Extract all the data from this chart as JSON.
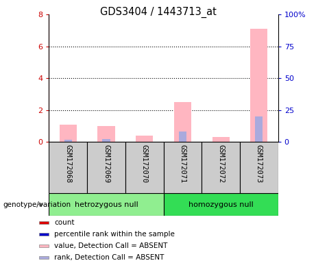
{
  "title": "GDS3404 / 1443713_at",
  "samples": [
    "GSM172068",
    "GSM172069",
    "GSM172070",
    "GSM172071",
    "GSM172072",
    "GSM172073"
  ],
  "groups": [
    "hetrozygous null",
    "homozygous null"
  ],
  "ylim_left": [
    0,
    8
  ],
  "ylim_right": [
    0,
    100
  ],
  "yticks_left": [
    0,
    2,
    4,
    6,
    8
  ],
  "yticks_right": [
    0,
    25,
    50,
    75,
    100
  ],
  "yticklabels_right": [
    "0",
    "25",
    "50",
    "75",
    "100%"
  ],
  "pink_bars": [
    1.1,
    1.0,
    0.4,
    2.5,
    0.3,
    7.1
  ],
  "blue_bars": [
    0.15,
    0.2,
    0.0,
    0.65,
    0.0,
    1.6
  ],
  "pink_color": "#FFB6C1",
  "blue_color": "#AAAADD",
  "red_color": "#DD0000",
  "dark_blue_color": "#0000CC",
  "group1_color": "#90EE90",
  "group2_color": "#33DD55",
  "sample_box_color": "#CCCCCC",
  "genotype_label": "genotype/variation",
  "tick_color_left": "#CC0000",
  "tick_color_right": "#0000CC",
  "legend_labels": [
    "count",
    "percentile rank within the sample",
    "value, Detection Call = ABSENT",
    "rank, Detection Call = ABSENT"
  ],
  "legend_colors": [
    "#DD0000",
    "#0000CC",
    "#FFB6C1",
    "#AAAADD"
  ]
}
